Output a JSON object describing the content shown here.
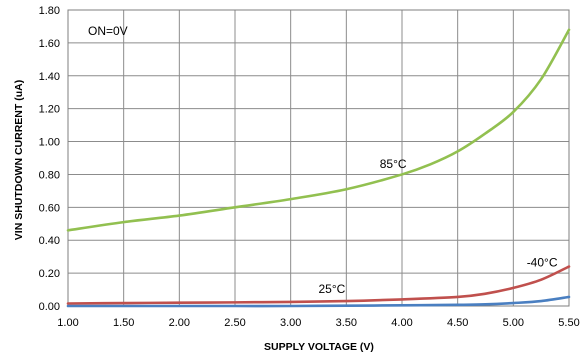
{
  "chart_data": {
    "type": "line",
    "title": "",
    "xlabel": "SUPPLY VOLTAGE (V)",
    "ylabel": "VIN SHUTDOWN CURRENT (uA)",
    "xlim": [
      1.0,
      5.5
    ],
    "ylim": [
      0.0,
      1.8
    ],
    "x_ticks": [
      "1.00",
      "1.50",
      "2.00",
      "2.50",
      "3.00",
      "3.50",
      "4.00",
      "4.50",
      "5.00",
      "5.50"
    ],
    "y_ticks": [
      "0.00",
      "0.20",
      "0.40",
      "0.60",
      "0.80",
      "1.00",
      "1.20",
      "1.40",
      "1.60",
      "1.80"
    ],
    "grid": true,
    "annotations": [
      "ON=0V"
    ],
    "series": [
      {
        "name": "85°C",
        "color": "#92c050",
        "x": [
          1.0,
          1.5,
          2.0,
          2.5,
          3.0,
          3.5,
          4.0,
          4.25,
          4.5,
          4.75,
          5.0,
          5.25,
          5.5
        ],
        "y": [
          0.46,
          0.51,
          0.55,
          0.6,
          0.65,
          0.71,
          0.8,
          0.86,
          0.94,
          1.05,
          1.18,
          1.38,
          1.68
        ]
      },
      {
        "name": "-40°C",
        "color": "#c0504d",
        "x": [
          1.0,
          1.5,
          2.0,
          2.5,
          3.0,
          3.5,
          4.0,
          4.5,
          4.75,
          5.0,
          5.25,
          5.5
        ],
        "y": [
          0.015,
          0.018,
          0.02,
          0.022,
          0.025,
          0.03,
          0.04,
          0.055,
          0.075,
          0.11,
          0.16,
          0.24
        ]
      },
      {
        "name": "25°C",
        "color": "#4a7fc1",
        "x": [
          1.0,
          1.5,
          2.0,
          2.5,
          3.0,
          3.5,
          4.0,
          4.5,
          4.75,
          5.0,
          5.25,
          5.5
        ],
        "y": [
          0.0,
          0.0,
          0.0,
          0.0,
          0.0,
          0.002,
          0.004,
          0.007,
          0.01,
          0.018,
          0.03,
          0.055
        ]
      }
    ],
    "series_labels": [
      {
        "text": "85°C",
        "x": 3.8,
        "y": 0.84
      },
      {
        "text": "-40°C",
        "x": 5.12,
        "y": 0.24
      },
      {
        "text": "25°C",
        "x": 3.25,
        "y": 0.08
      }
    ]
  }
}
